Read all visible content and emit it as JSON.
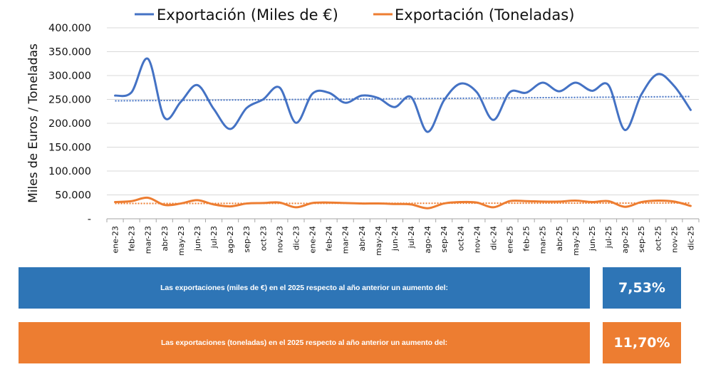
{
  "chart_data": {
    "type": "line",
    "title": "",
    "xlabel": "",
    "ylabel": "Miles de Euros / Toneladas",
    "ylim": [
      0,
      400000
    ],
    "yticks": [
      0,
      50000,
      100000,
      150000,
      200000,
      250000,
      300000,
      350000,
      400000
    ],
    "ytick_labels": [
      "-",
      "50.000",
      "100.000",
      "150.000",
      "200.000",
      "250.000",
      "300.000",
      "350.000",
      "400.000"
    ],
    "grid": true,
    "legend_position": "top",
    "categories": [
      "ene-23",
      "feb-23",
      "mar-23",
      "abr-23",
      "may-23",
      "jun-23",
      "jul-23",
      "ago-23",
      "sep-23",
      "oct-23",
      "nov-23",
      "dic-23",
      "ene-24",
      "feb-24",
      "mar-24",
      "abr-24",
      "may-24",
      "jun-24",
      "jul-24",
      "ago-24",
      "sep-24",
      "oct-24",
      "nov-24",
      "dic-24",
      "ene-25",
      "feb-25",
      "mar-25",
      "abr-25",
      "may-25",
      "jun-25",
      "jul-25",
      "ago-25",
      "sep-25",
      "oct-25",
      "nov-25",
      "dic-25"
    ],
    "series": [
      {
        "name": "Exportación (Miles de €)",
        "color": "#4472c4",
        "values": [
          258000,
          265000,
          335000,
          212000,
          245000,
          280000,
          230000,
          188000,
          232000,
          250000,
          275000,
          201000,
          262000,
          264000,
          243000,
          258000,
          253000,
          234000,
          255000,
          182000,
          248000,
          283000,
          265000,
          207000,
          265000,
          264000,
          285000,
          267000,
          285000,
          268000,
          280000,
          186000,
          260000,
          303000,
          278000,
          228000
        ],
        "trendline": {
          "style": "dotted",
          "start": 247000,
          "end": 256000
        }
      },
      {
        "name": "Exportación (Toneladas)",
        "color": "#ed7d31",
        "values": [
          35000,
          37000,
          44000,
          29000,
          32000,
          39000,
          30000,
          26000,
          32000,
          33000,
          34000,
          24000,
          33000,
          34000,
          33000,
          32000,
          32000,
          31000,
          30000,
          22000,
          32000,
          35000,
          34000,
          24000,
          37000,
          37000,
          36000,
          36000,
          38000,
          35000,
          37000,
          25000,
          35000,
          38000,
          36000,
          27000
        ],
        "trendline": {
          "style": "dotted",
          "start": 32000,
          "end": 33000
        }
      }
    ]
  },
  "banners": [
    {
      "text": "Las exportaciones (miles de €) en el 2025 respecto al año anterior un aumento del:",
      "value": "7,53%",
      "color": "#2e75b6"
    },
    {
      "text": "Las exportaciones (toneladas) en el 2025 respecto al año anterior un aumento del:",
      "value": "11,70%",
      "color": "#ed7d31"
    }
  ]
}
